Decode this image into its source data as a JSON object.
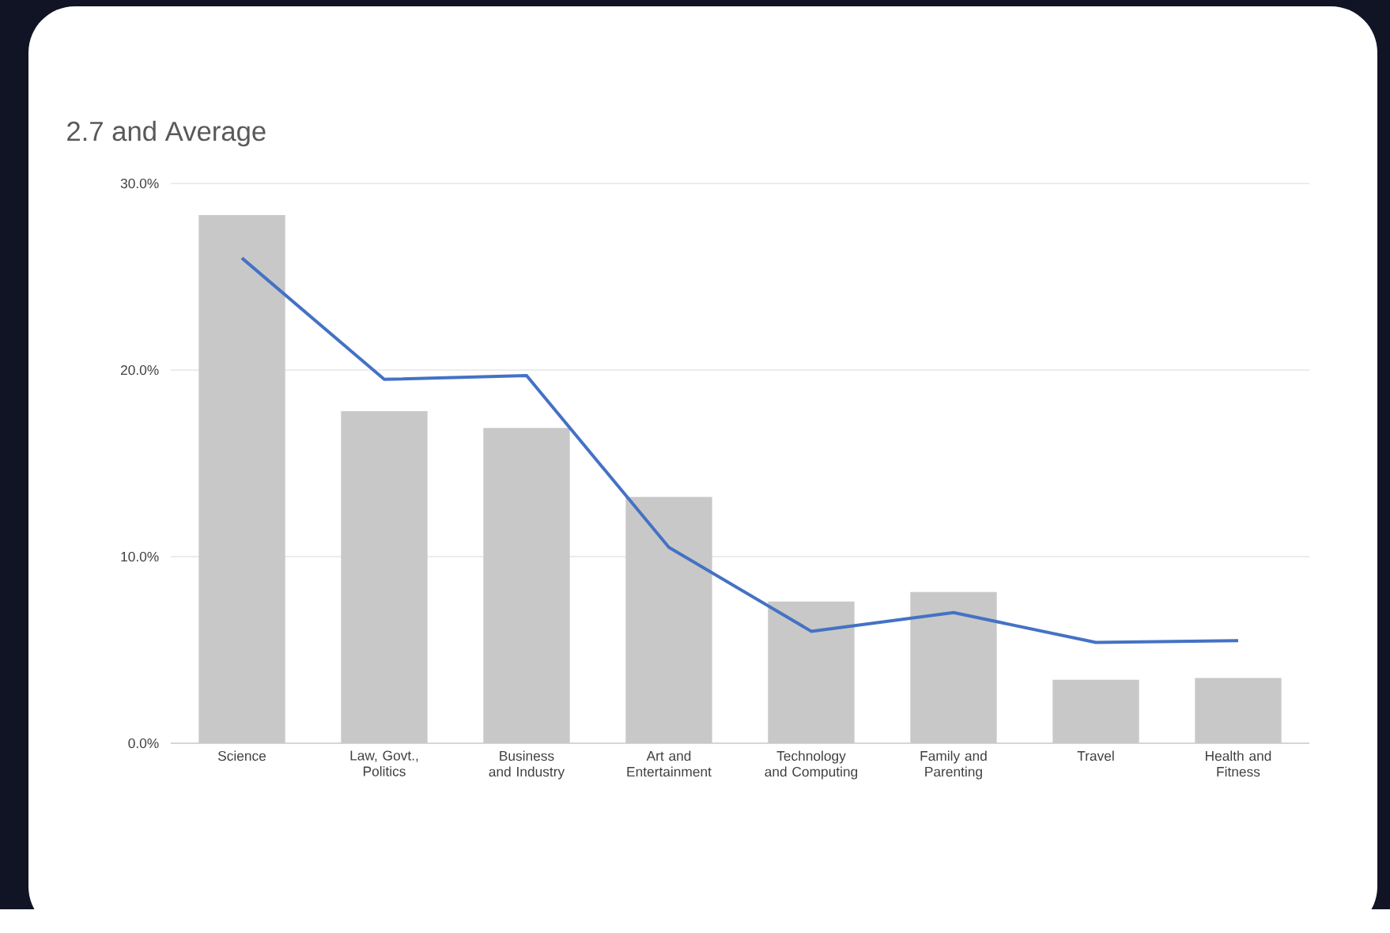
{
  "chart_data": {
    "type": "bar",
    "title": "2.7 and Average",
    "categories": [
      "Science",
      "Law, Govt., Politics",
      "Business and Industry",
      "Art and Entertainment",
      "Technology and Computing",
      "Family and Parenting",
      "Travel",
      "Health and Fitness"
    ],
    "series": [
      {
        "color": "#c8c8c8",
        "values": [
          28.3,
          17.8,
          16.9,
          13.2,
          7.6,
          8.1,
          3.4,
          3.5
        ]
      },
      {
        "type": "line",
        "color": "#4472c4",
        "values": [
          26.0,
          19.5,
          19.7,
          10.5,
          6.0,
          7.0,
          5.4,
          5.5
        ]
      }
    ],
    "ylim": [
      0,
      30
    ],
    "yticks": [
      {
        "value": 0,
        "label": "0.0%"
      },
      {
        "value": 10,
        "label": "10.0%"
      },
      {
        "value": 20,
        "label": "20.0%"
      },
      {
        "value": 30,
        "label": "30.0%"
      }
    ],
    "grid": "y",
    "marker": "none"
  }
}
